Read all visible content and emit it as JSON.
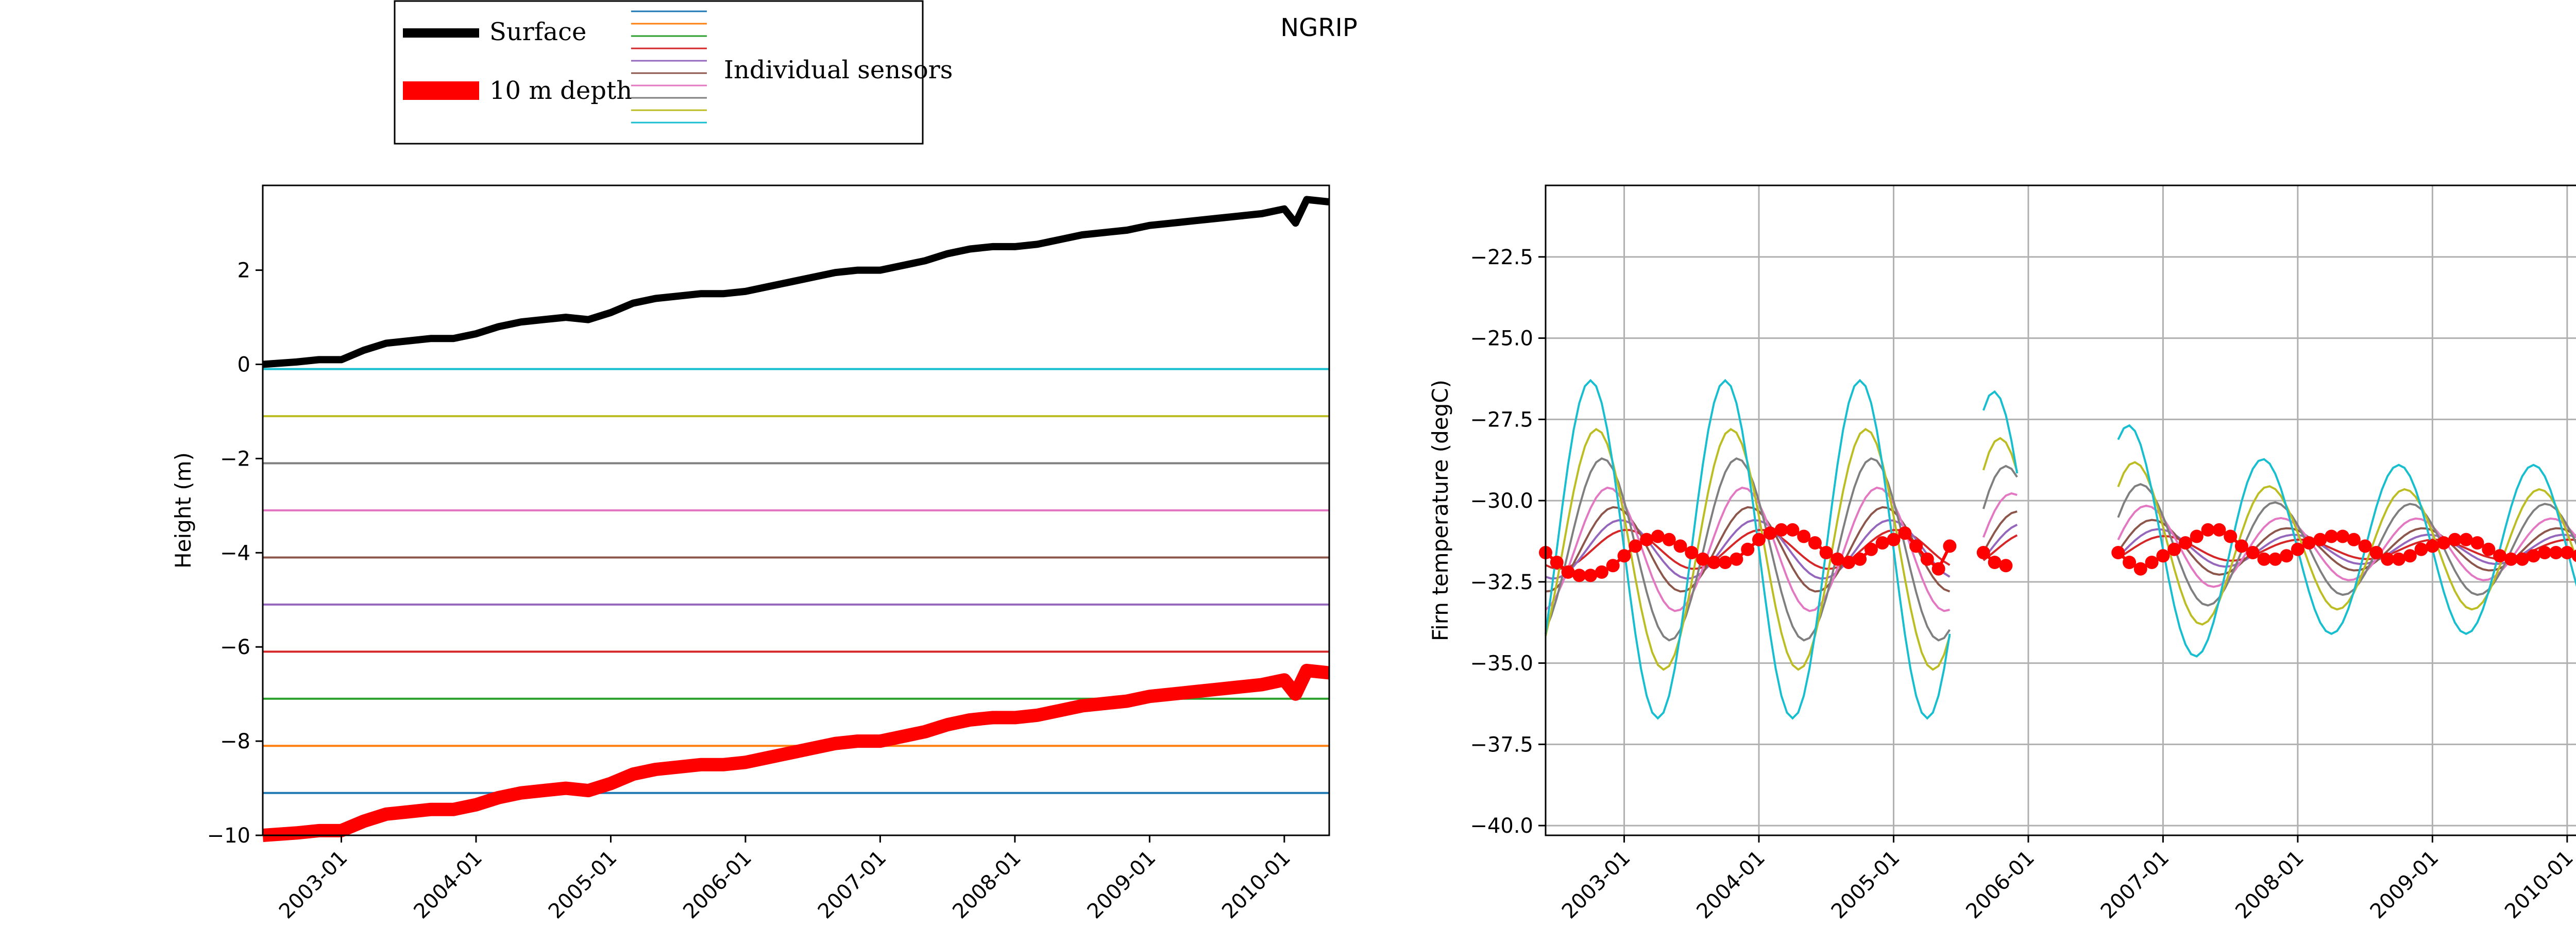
{
  "title": "NGRIP",
  "legend": {
    "surface_label": "Surface",
    "depth_label": "10 m depth",
    "sensors_label": "Individual sensors",
    "surface_color": "#000000",
    "depth_color": "#ff0000",
    "sensor_colors": [
      "#1f77b4",
      "#ff7f0e",
      "#2ca02c",
      "#d62728",
      "#9467bd",
      "#8c564b",
      "#e377c2",
      "#7f7f7f",
      "#bcbd22",
      "#17becf"
    ]
  },
  "chart_data": [
    {
      "type": "line",
      "ylabel": "Height (m)",
      "ylim": [
        -10,
        3.8
      ],
      "yticks": [
        2,
        0,
        -2,
        -4,
        -6,
        -8,
        -10
      ],
      "xlim": [
        "2002-06",
        "2010-05"
      ],
      "xticks": [
        "2003-01",
        "2004-01",
        "2005-01",
        "2006-01",
        "2007-01",
        "2008-01",
        "2009-01",
        "2010-01"
      ],
      "grid": false,
      "series": [
        {
          "name": "Surface",
          "color": "#000000",
          "x": [
            "2002-06",
            "2002-09",
            "2002-11",
            "2003-01",
            "2003-03",
            "2003-05",
            "2003-07",
            "2003-09",
            "2003-11",
            "2004-01",
            "2004-03",
            "2004-05",
            "2004-07",
            "2004-09",
            "2004-11",
            "2005-01",
            "2005-03",
            "2005-05",
            "2005-07",
            "2005-09",
            "2005-11",
            "2006-01",
            "2006-03",
            "2006-05",
            "2006-07",
            "2006-09",
            "2006-11",
            "2007-01",
            "2007-03",
            "2007-05",
            "2007-07",
            "2007-09",
            "2007-11",
            "2008-01",
            "2008-03",
            "2008-05",
            "2008-07",
            "2008-09",
            "2008-11",
            "2009-01",
            "2009-03",
            "2009-05",
            "2009-07",
            "2009-09",
            "2009-11",
            "2010-01",
            "2010-02",
            "2010-03",
            "2010-05"
          ],
          "values": [
            0.0,
            0.05,
            0.1,
            0.1,
            0.3,
            0.45,
            0.5,
            0.55,
            0.55,
            0.65,
            0.8,
            0.9,
            0.95,
            1.0,
            0.95,
            1.1,
            1.3,
            1.4,
            1.45,
            1.5,
            1.5,
            1.55,
            1.65,
            1.75,
            1.85,
            1.95,
            2.0,
            2.0,
            2.1,
            2.2,
            2.35,
            2.45,
            2.5,
            2.5,
            2.55,
            2.65,
            2.75,
            2.8,
            2.85,
            2.95,
            3.0,
            3.05,
            3.1,
            3.15,
            3.2,
            3.3,
            3.0,
            3.5,
            3.45
          ]
        },
        {
          "name": "10 m depth",
          "color": "#ff0000",
          "x": [
            "2002-06",
            "2002-09",
            "2002-11",
            "2003-01",
            "2003-03",
            "2003-05",
            "2003-07",
            "2003-09",
            "2003-11",
            "2004-01",
            "2004-03",
            "2004-05",
            "2004-07",
            "2004-09",
            "2004-11",
            "2005-01",
            "2005-03",
            "2005-05",
            "2005-07",
            "2005-09",
            "2005-11",
            "2006-01",
            "2006-03",
            "2006-05",
            "2006-07",
            "2006-09",
            "2006-11",
            "2007-01",
            "2007-03",
            "2007-05",
            "2007-07",
            "2007-09",
            "2007-11",
            "2008-01",
            "2008-03",
            "2008-05",
            "2008-07",
            "2008-09",
            "2008-11",
            "2009-01",
            "2009-03",
            "2009-05",
            "2009-07",
            "2009-09",
            "2009-11",
            "2010-01",
            "2010-02",
            "2010-03",
            "2010-05"
          ],
          "values": [
            -10.0,
            -9.95,
            -9.9,
            -9.9,
            -9.7,
            -9.55,
            -9.5,
            -9.45,
            -9.45,
            -9.35,
            -9.2,
            -9.1,
            -9.05,
            -9.0,
            -9.05,
            -8.9,
            -8.7,
            -8.6,
            -8.55,
            -8.5,
            -8.5,
            -8.45,
            -8.35,
            -8.25,
            -8.15,
            -8.05,
            -8.0,
            -8.0,
            -7.9,
            -7.8,
            -7.65,
            -7.55,
            -7.5,
            -7.5,
            -7.45,
            -7.35,
            -7.25,
            -7.2,
            -7.15,
            -7.05,
            -7.0,
            -6.95,
            -6.9,
            -6.85,
            -6.8,
            -6.7,
            -7.0,
            -6.5,
            -6.55
          ]
        }
      ],
      "sensor_levels": [
        -9.1,
        -8.1,
        -7.1,
        -6.1,
        -5.1,
        -4.1,
        -3.1,
        -2.1,
        -1.1,
        -0.1
      ]
    },
    {
      "type": "line",
      "ylabel": "Firn temperature (degC)",
      "ylim": [
        -40.3,
        -20.3
      ],
      "yticks": [
        -22.5,
        -25.0,
        -27.5,
        -30.0,
        -32.5,
        -35.0,
        -37.5,
        -40.0
      ],
      "xlim": [
        "2002-06",
        "2010-05"
      ],
      "xticks": [
        "2003-01",
        "2004-01",
        "2005-01",
        "2006-01",
        "2007-01",
        "2008-01",
        "2009-01",
        "2010-01"
      ],
      "grid": true,
      "segments": [
        [
          "2002-06",
          "2005-06"
        ],
        [
          "2005-09",
          "2005-12"
        ],
        [
          "2006-09",
          "2010-05"
        ]
      ],
      "series": [
        {
          "name": "10 m depth",
          "color": "#ff0000",
          "x": [
            "2002-06",
            "2002-07",
            "2002-08",
            "2002-09",
            "2002-10",
            "2002-11",
            "2002-12",
            "2003-01",
            "2003-02",
            "2003-03",
            "2003-04",
            "2003-05",
            "2003-06",
            "2003-07",
            "2003-08",
            "2003-09",
            "2003-10",
            "2003-11",
            "2003-12",
            "2004-01",
            "2004-02",
            "2004-03",
            "2004-04",
            "2004-05",
            "2004-06",
            "2004-07",
            "2004-08",
            "2004-09",
            "2004-10",
            "2004-11",
            "2004-12",
            "2005-01",
            "2005-02",
            "2005-03",
            "2005-04",
            "2005-05",
            "2005-06",
            "2005-09",
            "2005-10",
            "2005-11",
            "2006-09",
            "2006-10",
            "2006-11",
            "2006-12",
            "2007-01",
            "2007-02",
            "2007-03",
            "2007-04",
            "2007-05",
            "2007-06",
            "2007-07",
            "2007-08",
            "2007-09",
            "2007-10",
            "2007-11",
            "2007-12",
            "2008-01",
            "2008-02",
            "2008-03",
            "2008-04",
            "2008-05",
            "2008-06",
            "2008-07",
            "2008-08",
            "2008-09",
            "2008-10",
            "2008-11",
            "2008-12",
            "2009-01",
            "2009-02",
            "2009-03",
            "2009-04",
            "2009-05",
            "2009-06",
            "2009-07",
            "2009-08",
            "2009-09",
            "2009-10",
            "2009-11",
            "2009-12",
            "2010-01",
            "2010-02",
            "2010-03",
            "2010-04",
            "2010-05"
          ],
          "values": [
            -31.6,
            -31.9,
            -32.2,
            -32.3,
            -32.3,
            -32.2,
            -32.0,
            -31.7,
            -31.4,
            -31.2,
            -31.1,
            -31.2,
            -31.4,
            -31.6,
            -31.8,
            -31.9,
            -31.9,
            -31.8,
            -31.5,
            -31.2,
            -31.0,
            -30.9,
            -30.9,
            -31.1,
            -31.3,
            -31.6,
            -31.8,
            -31.9,
            -31.8,
            -31.5,
            -31.3,
            -31.2,
            -31.0,
            -31.4,
            -31.8,
            -32.1,
            -31.4,
            -31.6,
            -31.9,
            -32.0,
            -31.6,
            -31.9,
            -32.1,
            -31.9,
            -31.7,
            -31.5,
            -31.3,
            -31.1,
            -30.9,
            -30.9,
            -31.1,
            -31.4,
            -31.6,
            -31.8,
            -31.8,
            -31.7,
            -31.5,
            -31.3,
            -31.2,
            -31.1,
            -31.1,
            -31.2,
            -31.4,
            -31.6,
            -31.8,
            -31.8,
            -31.7,
            -31.5,
            -31.4,
            -31.3,
            -31.2,
            -31.2,
            -31.3,
            -31.5,
            -31.7,
            -31.8,
            -31.8,
            -31.7,
            -31.6,
            -31.6,
            -31.6,
            -31.7,
            -31.8,
            -31.8,
            -31.8
          ]
        }
      ]
    }
  ]
}
